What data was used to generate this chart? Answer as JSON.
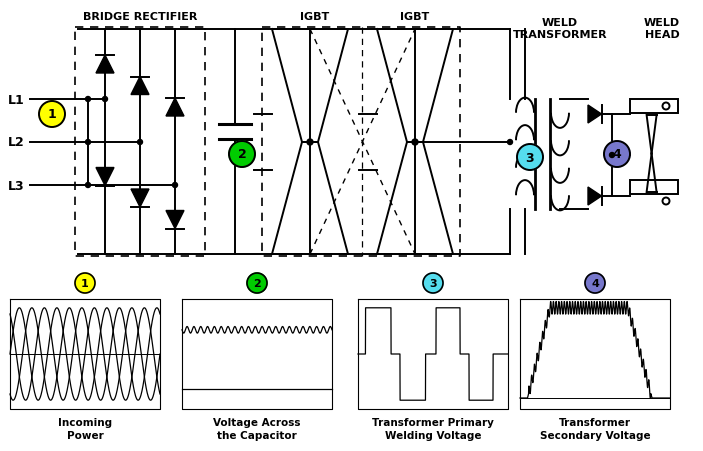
{
  "bg_color": "#ffffff",
  "black": "#000000",
  "label_bridge": "BRIDGE RECTIFIER",
  "label_igbt1": "IGBT",
  "label_igbt2": "IGBT",
  "label_weld_tx": "WELD\nTRANSFORMER",
  "label_weld_head": "WELD\nHEAD",
  "L1": "L1",
  "L2": "L2",
  "L3": "L3",
  "circle1_color": "#ffff00",
  "circle2_color": "#00cc00",
  "circle3_color": "#55ddee",
  "circle4_color": "#7777cc",
  "waveform_labels": [
    "Incoming\nPower",
    "Voltage Across\nthe Capacitor",
    "Transformer Primary\nWelding Voltage",
    "Transformer\nSecondary Voltage"
  ],
  "fig_w": 7.03,
  "fig_h": 4.52,
  "dpi": 100
}
